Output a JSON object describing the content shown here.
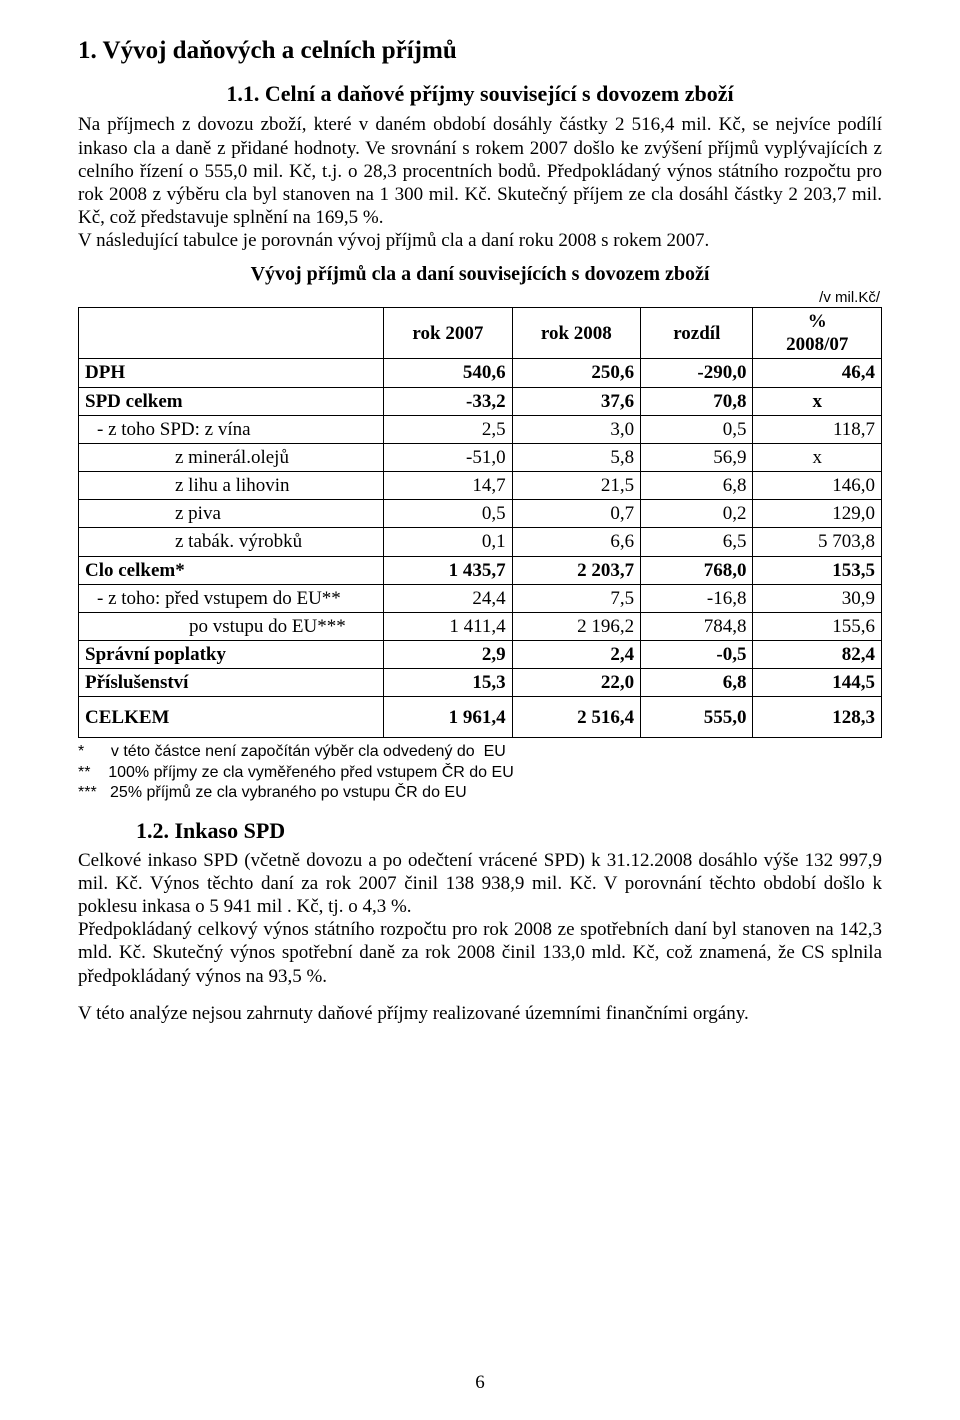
{
  "colors": {
    "text": "#000000",
    "background": "#ffffff",
    "border": "#000000"
  },
  "fonts": {
    "serif": "Times New Roman",
    "sans": "Arial"
  },
  "section1": {
    "heading": "1. Vývoj daňových a celních příjmů",
    "subheading": "1.1. Celní a daňové příjmy související s dovozem zboží",
    "paragraph": "Na příjmech z dovozu zboží, které v daném období dosáhly částky 2 516,4 mil. Kč, se nejvíce podílí inkaso cla a daně z přidané hodnoty. Ve srovnání s rokem 2007 došlo ke zvýšení příjmů vyplývajících z celního řízení o 555,0 mil. Kč, t.j. o 28,3 procentních bodů. Předpokládaný výnos státního rozpočtu pro rok 2008 z výběru cla byl stanoven  na 1 300 mil. Kč. Skutečný příjem ze cla dosáhl částky 2 203,7 mil. Kč, což představuje splnění  na 169,5 %.",
    "paragraph2": "V následující tabulce je porovnán vývoj příjmů cla a daní roku 2008 s rokem 2007."
  },
  "table": {
    "title": "Vývoj příjmů cla a daní souvisejících s dovozem zboží",
    "unit": "/v mil.Kč/",
    "columns": [
      "",
      "rok 2007",
      "rok 2008",
      "rozdíl",
      "% 2008/07"
    ],
    "col_widths_pct": [
      38,
      16,
      16,
      14,
      16
    ],
    "border_color": "#000000",
    "font_size": 19,
    "header_font_weight": "bold",
    "rows": [
      {
        "label": "DPH",
        "cells": [
          "540,6",
          "250,6",
          "-290,0",
          "46,4"
        ],
        "bold": true,
        "indent": 0
      },
      {
        "label": "SPD celkem",
        "cells": [
          "-33,2",
          "37,6",
          "70,8",
          "x"
        ],
        "bold": true,
        "indent": 0,
        "last_center": true
      },
      {
        "label": " - z toho SPD: z vína",
        "cells": [
          "2,5",
          "3,0",
          "0,5",
          "118,7"
        ],
        "bold": false,
        "indent": 1
      },
      {
        "label": "z minerál.olejů",
        "cells": [
          "-51,0",
          "5,8",
          "56,9",
          "x"
        ],
        "bold": false,
        "indent": 2,
        "last_center": true
      },
      {
        "label": "z lihu a lihovin",
        "cells": [
          "14,7",
          "21,5",
          "6,8",
          "146,0"
        ],
        "bold": false,
        "indent": 2
      },
      {
        "label": "z piva",
        "cells": [
          "0,5",
          "0,7",
          "0,2",
          "129,0"
        ],
        "bold": false,
        "indent": 2
      },
      {
        "label": "z tabák. výrobků",
        "cells": [
          "0,1",
          "6,6",
          "6,5",
          "5 703,8"
        ],
        "bold": false,
        "indent": 2
      },
      {
        "label": "Clo celkem*",
        "cells": [
          "1 435,7",
          "2 203,7",
          "768,0",
          "153,5"
        ],
        "bold": true,
        "indent": 0
      },
      {
        "label": " - z toho: před vstupem do EU**",
        "cells": [
          "24,4",
          "7,5",
          "-16,8",
          "30,9"
        ],
        "bold": false,
        "indent": 1
      },
      {
        "label": "po vstupu do EU***",
        "cells": [
          "1 411,4",
          "2 196,2",
          "784,8",
          "155,6"
        ],
        "bold": false,
        "indent": 2
      },
      {
        "label": "Správní poplatky",
        "cells": [
          "2,9",
          "2,4",
          "-0,5",
          "82,4"
        ],
        "bold": true,
        "indent": 0
      },
      {
        "label": "Příslušenství",
        "cells": [
          "15,3",
          "22,0",
          "6,8",
          "144,5"
        ],
        "bold": true,
        "indent": 0
      },
      {
        "label": "CELKEM",
        "cells": [
          "1 961,4",
          "2 516,4",
          "555,0",
          "128,3"
        ],
        "bold": true,
        "indent": 0,
        "celkem": true
      }
    ]
  },
  "footnotes": {
    "f1": "*      v této částce není započítán výběr cla odvedený do  EU",
    "f2": "**    100% příjmy ze cla vyměřeného před vstupem ČR do EU",
    "f3": "***   25% příjmů ze cla vybraného po vstupu ČR do EU"
  },
  "section2": {
    "heading": "1.2. Inkaso SPD",
    "p1a": "Celkové inkaso SPD (včetně dovozu a po odečtení vrácené SPD) k 31.12.2008 dosáhlo výše ",
    "p1b_sans": "132 997,9 mil. Kč.",
    "p1c": " Výnos těchto daní za rok 2007 činil 138 938,9 mil. Kč. V porovnání těchto ",
    "p1d_sans": "období došlo  k poklesu inkasa o 5 941 mil . Kč, tj. o 4,3 %.",
    "p2": "Předpokládaný celkový výnos státního rozpočtu pro rok 2008 ze spotřebních daní byl stanoven na 142,3 mld. Kč. Skutečný výnos spotřební daně za rok 2008 činil 133,0 mld. Kč, což znamená, že CS splnila předpokládaný výnos na 93,5 %.",
    "p3": "V této analýze nejsou zahrnuty daňové příjmy realizované územními finančními orgány."
  },
  "page_number": "6"
}
